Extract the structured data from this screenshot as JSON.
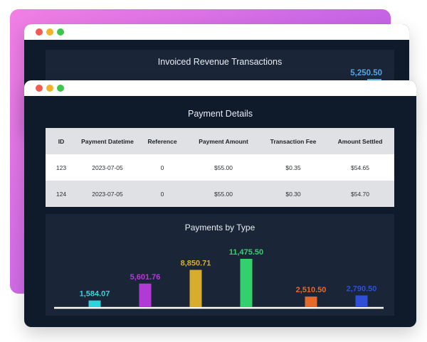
{
  "window_back": {
    "title": "Invoiced Revenue Transactions",
    "value": "5,250.50",
    "accent": "#4fa8e6"
  },
  "window_front": {
    "title": "Payment Details",
    "columns": [
      "ID",
      "Payment Datetime",
      "Reference",
      "Payment Amount",
      "Transaction Fee",
      "Amount Settled"
    ],
    "rows": [
      [
        "123",
        "2023-07-05",
        "0",
        "$55.00",
        "$0.35",
        "$54.65"
      ],
      [
        "124",
        "2023-07-05",
        "0",
        "$55.00",
        "$0.30",
        "$54.70"
      ]
    ]
  },
  "traffic_lights": {
    "red": "#f25b50",
    "yellow": "#f3b22b",
    "green": "#3ec64a"
  },
  "chart_data": {
    "type": "bar",
    "title": "Payments by Type",
    "xlabel": "",
    "ylabel": "",
    "ylim": [
      0,
      11475.5
    ],
    "grid": false,
    "values": [
      1584.07,
      5601.76,
      8850.71,
      11475.5,
      2510.5,
      2790.5
    ],
    "value_labels": [
      "1,584.07",
      "5,601.76",
      "8,850.71",
      "11,475.50",
      "2,510.50",
      "2,790.50"
    ],
    "colors": [
      "#2fd4db",
      "#b13ad6",
      "#d8ad2e",
      "#33d06e",
      "#e36a2d",
      "#2e4fd6"
    ]
  }
}
